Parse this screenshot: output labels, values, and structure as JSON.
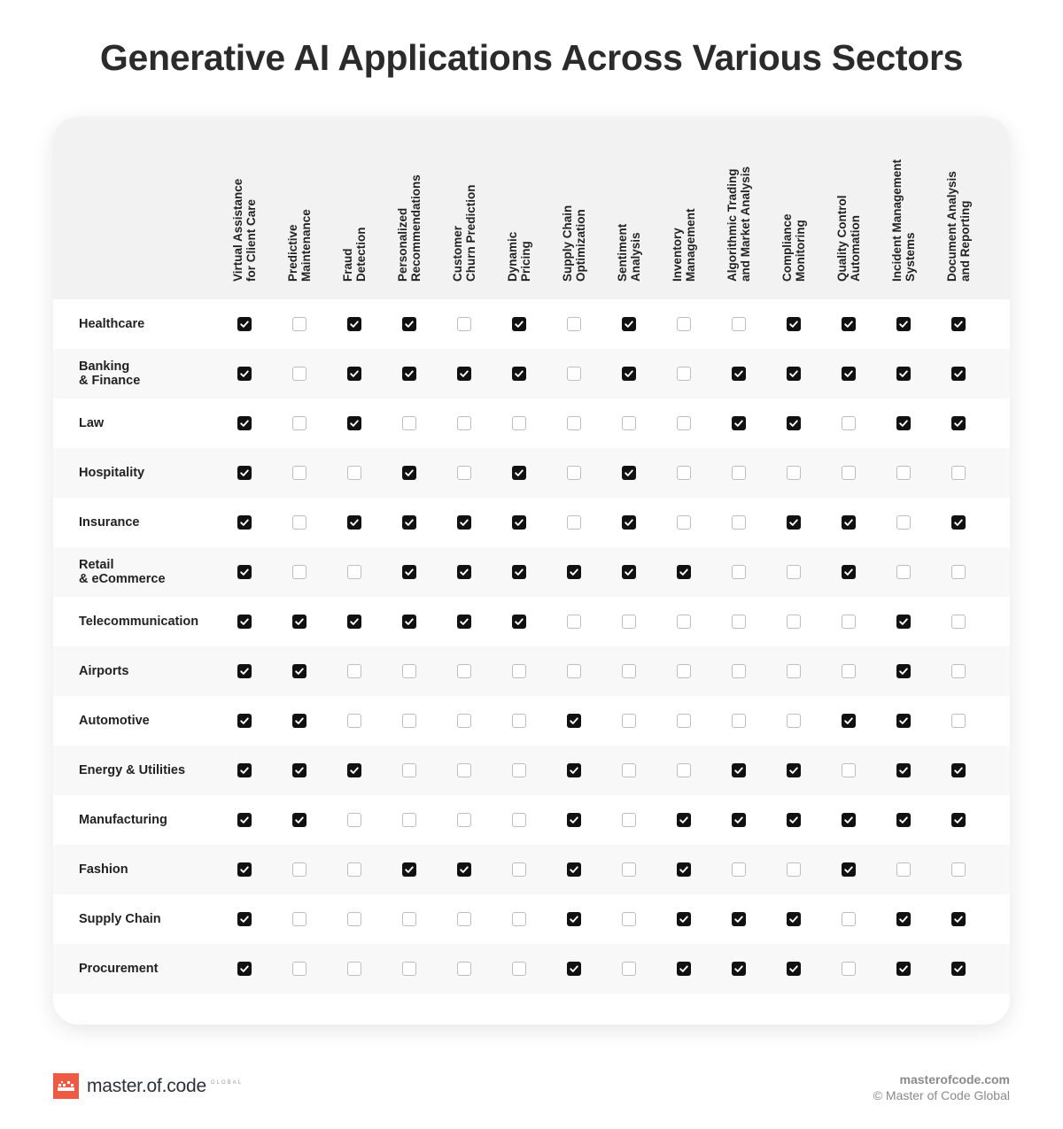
{
  "title": "Generative AI Applications Across Various Sectors",
  "chart_data": {
    "type": "table",
    "columns": [
      "Virtual Assistance\nfor Client Care",
      "Predictive\nMaintenance",
      "Fraud\nDetection",
      "Personalized\nRecommendations",
      "Customer\nChurn Prediction",
      "Dynamic\nPricing",
      "Supply Chain\nOptimization",
      "Sentiment\nAnalysis",
      "Inventory\nManagement",
      "Algorithmic Trading\nand Market Analysis",
      "Compliance\nMonitoring",
      "Quality Control\nAutomation",
      "Incident Management\nSystems",
      "Document Analysis\nand Reporting"
    ],
    "rows": [
      {
        "label": "Healthcare",
        "values": [
          1,
          0,
          1,
          1,
          0,
          1,
          0,
          1,
          0,
          0,
          1,
          1,
          1,
          1
        ]
      },
      {
        "label": "Banking\n& Finance",
        "values": [
          1,
          0,
          1,
          1,
          1,
          1,
          0,
          1,
          0,
          1,
          1,
          1,
          1,
          1
        ]
      },
      {
        "label": "Law",
        "values": [
          1,
          0,
          1,
          0,
          0,
          0,
          0,
          0,
          0,
          1,
          1,
          0,
          1,
          1
        ]
      },
      {
        "label": "Hospitality",
        "values": [
          1,
          0,
          0,
          1,
          0,
          1,
          0,
          1,
          0,
          0,
          0,
          0,
          0,
          0
        ]
      },
      {
        "label": "Insurance",
        "values": [
          1,
          0,
          1,
          1,
          1,
          1,
          0,
          1,
          0,
          0,
          1,
          1,
          0,
          1
        ]
      },
      {
        "label": "Retail\n& eCommerce",
        "values": [
          1,
          0,
          0,
          1,
          1,
          1,
          1,
          1,
          1,
          0,
          0,
          1,
          0,
          0
        ]
      },
      {
        "label": "Telecommunication",
        "values": [
          1,
          1,
          1,
          1,
          1,
          1,
          0,
          0,
          0,
          0,
          0,
          0,
          1,
          0
        ]
      },
      {
        "label": "Airports",
        "values": [
          1,
          1,
          0,
          0,
          0,
          0,
          0,
          0,
          0,
          0,
          0,
          0,
          1,
          0
        ]
      },
      {
        "label": "Automotive",
        "values": [
          1,
          1,
          0,
          0,
          0,
          0,
          1,
          0,
          0,
          0,
          0,
          1,
          1,
          0
        ]
      },
      {
        "label": "Energy & Utilities",
        "values": [
          1,
          1,
          1,
          0,
          0,
          0,
          1,
          0,
          0,
          1,
          1,
          0,
          1,
          1
        ]
      },
      {
        "label": "Manufacturing",
        "values": [
          1,
          1,
          0,
          0,
          0,
          0,
          1,
          0,
          1,
          1,
          1,
          1,
          1,
          1
        ]
      },
      {
        "label": "Fashion",
        "values": [
          1,
          0,
          0,
          1,
          1,
          0,
          1,
          0,
          1,
          0,
          0,
          1,
          0,
          0
        ]
      },
      {
        "label": "Supply Chain",
        "values": [
          1,
          0,
          0,
          0,
          0,
          0,
          1,
          0,
          1,
          1,
          1,
          0,
          1,
          1
        ]
      },
      {
        "label": "Procurement",
        "values": [
          1,
          0,
          0,
          0,
          0,
          0,
          1,
          0,
          1,
          1,
          1,
          0,
          1,
          1
        ]
      }
    ],
    "checked_color": "#111111",
    "unchecked_border_color": "#bdbdbd"
  },
  "footer": {
    "brand": "master.of.code",
    "brand_sub": "GLOBAL",
    "website": "masterofcode.com",
    "copyright": "© Master of Code Global"
  },
  "colors": {
    "brand": "#ef5a45",
    "header_bg": "#f2f2f2",
    "alt_row_bg": "#f8f8f8"
  }
}
